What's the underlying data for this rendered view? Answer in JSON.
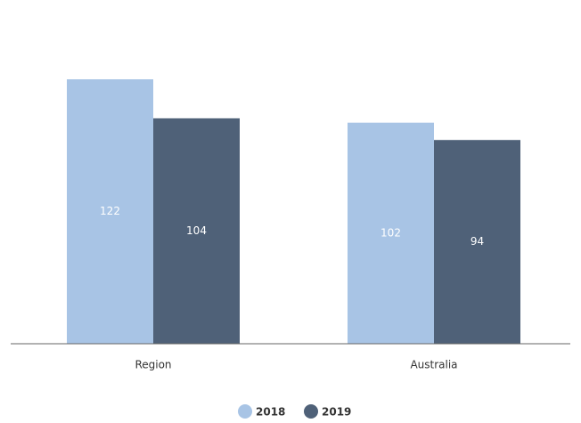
{
  "chart_data": {
    "type": "bar",
    "categories": [
      "Region",
      "Australia"
    ],
    "series": [
      {
        "name": "2018",
        "color": "#a8c4e5",
        "values": [
          122,
          102
        ]
      },
      {
        "name": "2019",
        "color": "#4f6178",
        "values": [
          104,
          94
        ]
      }
    ]
  }
}
